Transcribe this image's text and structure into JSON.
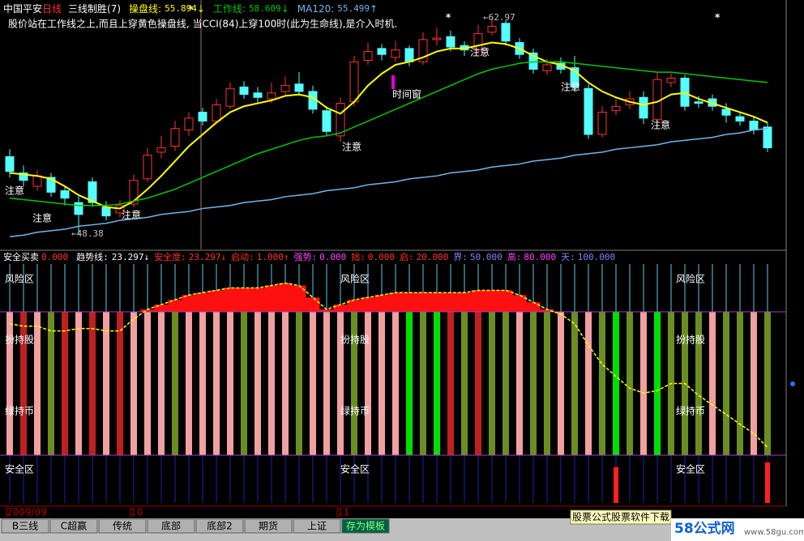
{
  "chart_data": [
    {
      "type": "candlestick",
      "title": "中国平安",
      "period": "日线",
      "indicator": "三线制胜(7)",
      "separator": ":",
      "note": "股价站在工作线之上,而且上穿黄色操盘线,  当CCI(84)上穿100时(此为生命线),是介入时机.",
      "categories": [
        "2009/09",
        null,
        null,
        null,
        null,
        null,
        null,
        null,
        null,
        "10",
        null,
        null,
        null,
        null,
        null,
        null,
        null,
        null,
        null,
        null,
        null,
        null,
        null,
        null,
        "11",
        null,
        null,
        null,
        null,
        null,
        null,
        null,
        null,
        null,
        null,
        null,
        null,
        null,
        null,
        null,
        null,
        null,
        null,
        null,
        null,
        null,
        null,
        null,
        null,
        null,
        null,
        null,
        null,
        null,
        null,
        null
      ],
      "open": [
        53.6,
        52.5,
        51.6,
        52.2,
        51.3,
        50.5,
        51.9,
        50.2,
        49.8,
        50.4,
        52.1,
        53.9,
        54.3,
        55.4,
        56.6,
        56.0,
        57.0,
        58.3,
        57.9,
        57.5,
        58.0,
        58.5,
        58.0,
        56.7,
        55.0,
        57.3,
        60.1,
        60.9,
        60.3,
        60.9,
        60.0,
        61.5,
        61.7,
        61.1,
        60.8,
        62.0,
        62.6,
        61.3,
        60.6,
        59.4,
        59.9,
        59.6,
        58.2,
        55.1,
        56.7,
        57.1,
        57.6,
        56.1,
        58.6,
        58.9,
        57.3,
        57.5,
        56.8,
        56.3,
        56.0,
        55.6
      ],
      "high": [
        54.1,
        53.0,
        52.7,
        52.5,
        51.6,
        50.9,
        52.2,
        50.6,
        50.7,
        52.4,
        54.2,
        55.0,
        56.0,
        56.6,
        56.9,
        57.5,
        58.6,
        58.7,
        58.3,
        58.6,
        59.0,
        59.3,
        58.4,
        57.0,
        57.6,
        60.4,
        61.3,
        61.2,
        61.4,
        61.1,
        62.0,
        62.3,
        62.1,
        61.4,
        62.5,
        62.97,
        62.8,
        61.6,
        60.9,
        60.2,
        60.3,
        60.4,
        58.5,
        57.0,
        57.6,
        58.0,
        58.0,
        59.3,
        59.2,
        59.1,
        57.7,
        57.8,
        57.2,
        56.6,
        56.3,
        55.9
      ],
      "low": [
        52.2,
        51.6,
        51.3,
        50.9,
        50.3,
        48.38,
        50.2,
        49.3,
        49.5,
        50.2,
        51.9,
        53.5,
        54.0,
        55.0,
        55.7,
        55.8,
        56.8,
        57.5,
        57.2,
        57.2,
        57.8,
        57.7,
        56.5,
        55.0,
        54.6,
        57.0,
        59.8,
        60.1,
        60.0,
        59.7,
        59.8,
        61.1,
        60.7,
        60.4,
        60.6,
        61.8,
        61.1,
        60.2,
        59.2,
        59.1,
        59.2,
        58.0,
        54.8,
        54.9,
        56.4,
        56.8,
        55.8,
        55.9,
        58.3,
        56.7,
        56.9,
        56.7,
        55.9,
        55.7,
        55.1,
        53.9
      ],
      "close": [
        52.6,
        52.0,
        52.3,
        51.2,
        50.8,
        49.7,
        50.5,
        49.6,
        50.3,
        52.0,
        53.7,
        54.2,
        55.5,
        56.2,
        56.0,
        57.1,
        58.2,
        57.8,
        57.6,
        57.9,
        58.4,
        58.0,
        56.8,
        55.3,
        57.2,
        60.0,
        60.7,
        60.5,
        60.8,
        60.0,
        61.5,
        61.6,
        61.0,
        60.8,
        61.9,
        62.4,
        61.4,
        60.5,
        59.5,
        59.8,
        59.5,
        58.3,
        55.1,
        56.6,
        57.0,
        57.5,
        56.2,
        58.8,
        58.9,
        57.0,
        57.2,
        57.0,
        56.4,
        56.0,
        55.4,
        54.2
      ],
      "up_color": "#ff3232",
      "down_color": "#54ffff",
      "ylim": [
        47.5,
        63.9
      ],
      "series": [
        {
          "name": "操盘线",
          "color": "#ffff00",
          "arrow": "↓",
          "values": [
            52.5,
            52.4,
            52.3,
            52.1,
            51.6,
            51.0,
            50.6,
            50.2,
            50.1,
            50.6,
            51.4,
            52.3,
            53.3,
            54.3,
            55.1,
            55.9,
            56.6,
            57.0,
            57.2,
            57.4,
            57.7,
            57.8,
            57.6,
            56.9,
            56.5,
            57.3,
            58.4,
            59.2,
            59.8,
            60.0,
            60.3,
            60.7,
            60.9,
            60.9,
            61.1,
            61.3,
            61.2,
            60.9,
            60.4,
            60.0,
            59.8,
            59.4,
            58.6,
            58.0,
            57.6,
            57.3,
            57.1,
            57.3,
            57.8,
            57.9,
            57.5,
            57.2,
            56.9,
            56.6,
            56.3,
            55.894
          ]
        },
        {
          "name": "工作线",
          "color": "#00c800",
          "arrow": "↓",
          "values": [
            50.8,
            50.7,
            50.6,
            50.5,
            50.4,
            50.3,
            50.3,
            50.3,
            50.4,
            50.6,
            50.8,
            51.1,
            51.4,
            51.8,
            52.2,
            52.6,
            53.0,
            53.4,
            53.8,
            54.1,
            54.4,
            54.7,
            54.9,
            55.0,
            55.2,
            55.6,
            56.0,
            56.4,
            56.8,
            57.2,
            57.6,
            58.0,
            58.4,
            58.8,
            59.2,
            59.5,
            59.7,
            59.9,
            60.0,
            60.0,
            60.0,
            59.9,
            59.8,
            59.7,
            59.6,
            59.5,
            59.4,
            59.3,
            59.3,
            59.2,
            59.1,
            59.0,
            58.9,
            58.8,
            58.7,
            58.609
          ]
        },
        {
          "name": "MA120",
          "color": "#6fb8e8",
          "arrow": "↑",
          "values": [
            48.2,
            48.3,
            48.5,
            48.6,
            48.7,
            48.9,
            49.0,
            49.1,
            49.3,
            49.4,
            49.5,
            49.7,
            49.8,
            49.9,
            50.1,
            50.2,
            50.3,
            50.5,
            50.6,
            50.7,
            50.9,
            51.0,
            51.1,
            51.3,
            51.4,
            51.5,
            51.7,
            51.8,
            51.9,
            52.1,
            52.2,
            52.3,
            52.5,
            52.6,
            52.7,
            52.9,
            53.0,
            53.1,
            53.3,
            53.4,
            53.5,
            53.7,
            53.8,
            53.9,
            54.1,
            54.2,
            54.3,
            54.4,
            54.6,
            54.7,
            54.8,
            54.9,
            55.1,
            55.2,
            55.4,
            55.499
          ]
        }
      ],
      "annotations": {
        "attention": "注意",
        "time_window": "时间窗",
        "star": "*",
        "arrow": "←"
      },
      "max_marker": 62.97,
      "min_marker": 48.38
    },
    {
      "type": "indicator",
      "title": "安全买卖",
      "title_value": {
        "value": 0,
        "label": "0.000"
      },
      "separator": ":",
      "ylim": [
        0,
        100
      ],
      "series": [
        {
          "name": "趋势线",
          "color": "#ffff00",
          "arrow": "↓",
          "values": [
            75,
            74,
            74,
            72,
            72,
            73,
            73,
            72,
            72,
            77,
            81,
            83,
            85,
            87,
            88,
            89,
            90,
            90,
            90,
            91,
            92,
            91,
            86,
            81,
            83,
            85,
            86,
            87,
            88,
            88,
            88,
            88,
            88,
            88,
            89,
            89,
            89,
            87,
            84,
            81,
            79,
            75,
            66,
            58,
            53,
            48,
            46,
            47,
            50,
            50,
            45,
            41,
            37,
            33,
            29,
            23.297
          ]
        }
      ],
      "items": [
        {
          "name": "安全度",
          "value": 23.297,
          "arrow": "↓",
          "color": "#ff3030"
        },
        {
          "name": "启动",
          "value": {
            "value": 1,
            "label": "1.000"
          },
          "arrow": "↑",
          "color": "#ff3030"
        },
        {
          "name": "强势",
          "value": {
            "value": 0,
            "label": "0.000"
          },
          "color": "#ff40ff"
        },
        {
          "name": "拙",
          "value": {
            "value": 0,
            "label": "0.000"
          },
          "color": "#ff3030"
        },
        {
          "name": "启",
          "value": {
            "value": 20,
            "label": "20.000"
          },
          "color": "#ff3030"
        },
        {
          "name": "界",
          "value": {
            "value": 50,
            "label": "50.000"
          },
          "color": "#8080ff"
        },
        {
          "name": "高",
          "value": {
            "value": 80,
            "label": "80.000"
          },
          "color": "#ff40ff"
        },
        {
          "name": "天",
          "value": {
            "value": 100,
            "label": "100.000"
          },
          "color": "#8080ff"
        }
      ],
      "zones": [
        "风险区",
        "扮持股",
        "绿持币",
        "安全区"
      ],
      "stripe_colors": [
        "#f0a0a0",
        "#c02020",
        "#f0a0a0",
        "#6b8e23",
        "#c02020",
        "#f0a0a0",
        "#c02020",
        "#f0a0a0",
        "#c02020",
        "#f0a0a0",
        "#f0a0a0",
        "#f0a0a0",
        "#6b8e23",
        "#f0a0a0",
        "#f0a0a0",
        "#f0a0a0",
        "#f0a0a0",
        "#6b8e23",
        "#f0a0a0",
        "#f0a0a0",
        "#f0a0a0",
        "#6b8e23",
        "#f0a0a0",
        "#f0a0a0",
        "#f0a0a0",
        "#6b8e23",
        "#f0a0a0",
        "#f0a0a0",
        "#f0a0a0",
        "#00e000",
        "#6b8e23",
        "#00e000",
        "#c02020",
        "#6b8e23",
        "#c02020",
        "#6b8e23",
        "#6b8e23",
        "#f0a0a0",
        "#6b8e23",
        "#6b8e23",
        "#f0a0a0",
        "#6b8e23",
        "#f0a0a0",
        "#6b8e23",
        "#00e000",
        "#6b8e23",
        "#f0a0a0",
        "#00e000",
        "#6b8e23",
        "#6b8e23",
        "#6b8e23",
        "#f0a0a0",
        "#6b8e23",
        "#6b8e23",
        "#f0a0a0",
        "#6b8e23"
      ],
      "area_color": "#ff1010",
      "signal_color": "#ff2020",
      "signals": [
        null,
        null,
        null,
        null,
        null,
        null,
        null,
        null,
        null,
        null,
        null,
        null,
        null,
        null,
        null,
        null,
        null,
        null,
        null,
        null,
        null,
        null,
        null,
        null,
        null,
        null,
        null,
        null,
        null,
        null,
        null,
        null,
        null,
        null,
        null,
        null,
        null,
        null,
        null,
        null,
        null,
        null,
        null,
        null,
        15,
        null,
        null,
        null,
        null,
        null,
        null,
        null,
        null,
        null,
        null,
        17
      ]
    }
  ],
  "tabs": [
    "B三线",
    "C超赢",
    "传统",
    "底部",
    "底部2",
    "期货",
    "上证",
    "存为模板"
  ],
  "ad": "股票公式股票软件下载",
  "logo": {
    "name": "58公式网",
    "url": "www.58gu.com"
  }
}
